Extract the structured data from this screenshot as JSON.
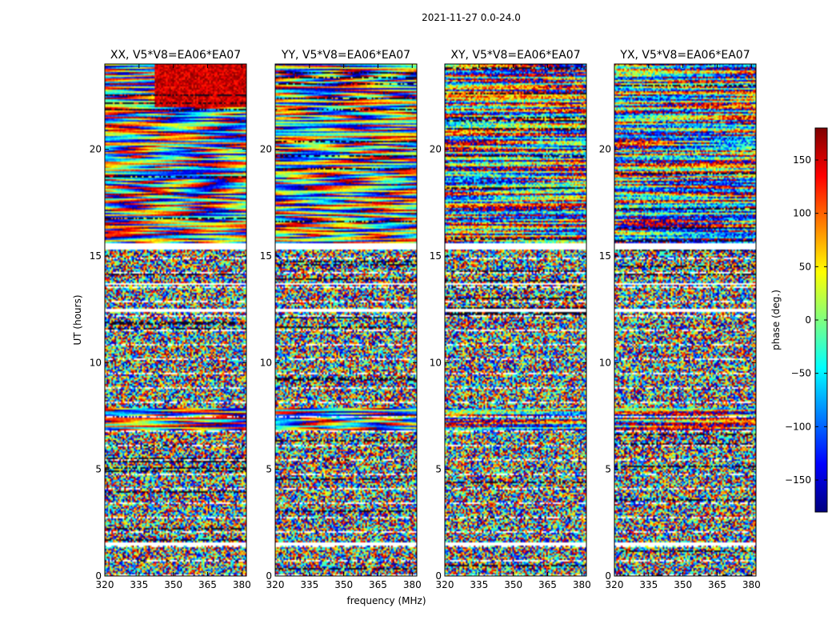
{
  "chart_data": {
    "type": "heatmap",
    "suptitle": "2021-11-27 0.0-24.0",
    "xlabel": "frequency (MHz)",
    "ylabel": "UT (hours)",
    "xlim": [
      320,
      382
    ],
    "ylim": [
      0,
      24
    ],
    "xticks": [
      320,
      335,
      350,
      365,
      380
    ],
    "yticks": [
      0,
      5,
      10,
      15,
      20
    ],
    "panels": [
      {
        "title": "XX, V5*V8=EA06*EA07",
        "pol": "XX"
      },
      {
        "title": "YY, V5*V8=EA06*EA07",
        "pol": "YY"
      },
      {
        "title": "XY, V5*V8=EA06*EA07",
        "pol": "XY"
      },
      {
        "title": "YX, V5*V8=EA06*EA07",
        "pol": "YX"
      }
    ],
    "blank_bands_ut": [
      [
        1.45,
        1.6
      ],
      [
        12.4,
        12.5
      ],
      [
        13.65,
        13.75
      ],
      [
        15.3,
        15.6
      ]
    ],
    "colorbar": {
      "label": "phase (deg.)",
      "range": [
        -180,
        180
      ],
      "ticks": [
        -150,
        -100,
        -50,
        0,
        50,
        100,
        150
      ],
      "colormap": [
        "#00007f",
        "#0000ff",
        "#007fff",
        "#00ffff",
        "#7fff7f",
        "#ffff00",
        "#ff7f00",
        "#ff0000",
        "#7f0000"
      ]
    }
  }
}
